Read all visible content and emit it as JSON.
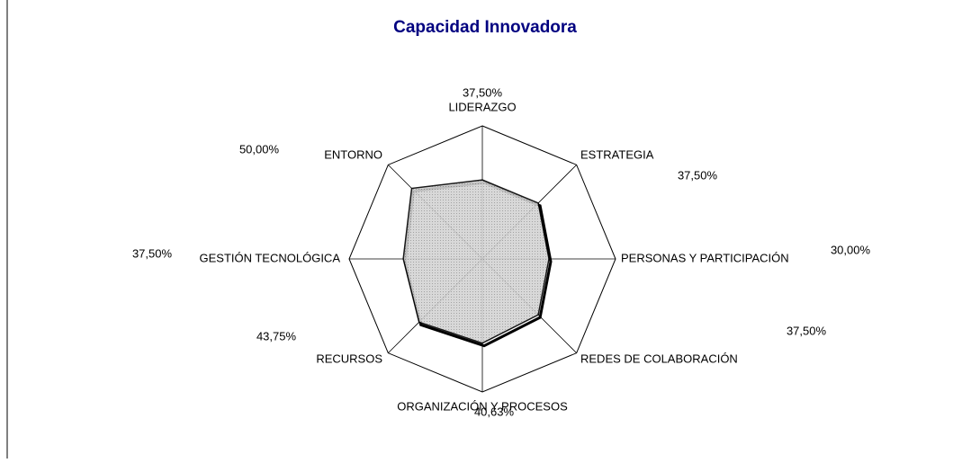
{
  "chart_data": {
    "type": "radar",
    "title": "Capacidad Innovadora",
    "categories": [
      "LIDERAZGO",
      "ESTRATEGIA",
      "PERSONAS Y PARTICIPACIÓN",
      "REDES DE COLABORACIÓN",
      "ORGANIZACIÓN Y PROCESOS",
      "RECURSOS",
      "GESTIÓN TECNOLÓGICA",
      "ENTORNO"
    ],
    "values": [
      37.5,
      37.5,
      30,
      37.5,
      40.63,
      43.75,
      37.5,
      50
    ],
    "value_labels": [
      "37,50%",
      "37,50%",
      "30,00%",
      "37,50%",
      "40,63%",
      "43,75%",
      "37,50%",
      "50,00%"
    ],
    "color": "#c8c8c8",
    "ylim": [
      -10,
      70
    ]
  }
}
